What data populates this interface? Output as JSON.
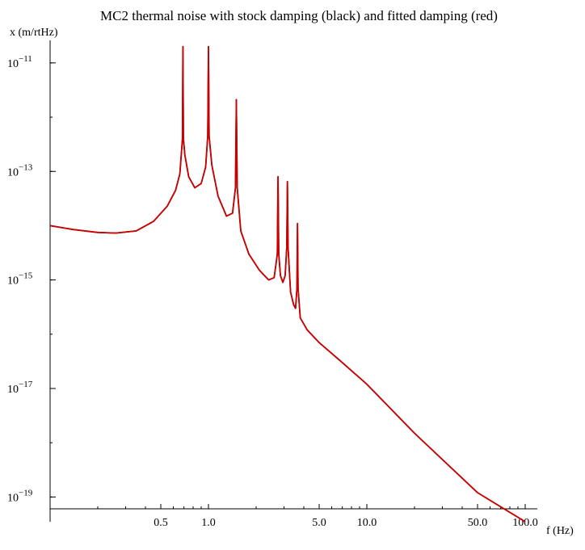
{
  "chart_data": {
    "type": "line",
    "title": "MC2 thermal noise with stock damping (black) and fitted damping (red)",
    "xlabel": "f (Hz)",
    "ylabel": "x (m/rtHz)",
    "x_scale": "log",
    "y_scale": "log",
    "xlim": [
      0.1,
      100
    ],
    "ylim": [
      3.5e-20,
      2.6e-11
    ],
    "grid": false,
    "x_ticks": [
      {
        "value": 0.5,
        "label": "0.5"
      },
      {
        "value": 1.0,
        "label": "1.0"
      },
      {
        "value": 5.0,
        "label": "5.0"
      },
      {
        "value": 10.0,
        "label": "10.0"
      },
      {
        "value": 50.0,
        "label": "50.0"
      },
      {
        "value": 100.0,
        "label": "100.0"
      }
    ],
    "y_ticks": [
      {
        "value": 1e-11,
        "base": "10",
        "exponent": "−11"
      },
      {
        "value": 1e-13,
        "base": "10",
        "exponent": "−13"
      },
      {
        "value": 1e-15,
        "base": "10",
        "exponent": "−15"
      },
      {
        "value": 1e-17,
        "base": "10",
        "exponent": "−17"
      },
      {
        "value": 1e-19,
        "base": "10",
        "exponent": "−19"
      }
    ],
    "series": [
      {
        "color": "#000000",
        "x": [
          0.1,
          0.14,
          0.2,
          0.26,
          0.35,
          0.45,
          0.55,
          0.62,
          0.66,
          0.685,
          0.69,
          0.695,
          0.71,
          0.75,
          0.82,
          0.9,
          0.96,
          0.99,
          1.0,
          1.01,
          1.05,
          1.15,
          1.3,
          1.42,
          1.48,
          1.5,
          1.52,
          1.6,
          1.8,
          2.1,
          2.4,
          2.6,
          2.72,
          2.75,
          2.78,
          2.85,
          2.95,
          3.05,
          3.12,
          3.15,
          3.18,
          3.3,
          3.45,
          3.55,
          3.62,
          3.65,
          3.68,
          3.8,
          4.2,
          5.0,
          7.0,
          10,
          20,
          50,
          100
        ],
        "y": [
          1e-14,
          8.5e-15,
          7.5e-15,
          7.3e-15,
          8e-15,
          1.2e-14,
          2.3e-14,
          4.5e-14,
          9e-14,
          4e-13,
          2e-11,
          4e-13,
          2e-13,
          8e-14,
          5e-14,
          6e-14,
          1.2e-13,
          4.5e-13,
          2e-11,
          4.5e-13,
          1.3e-13,
          3.5e-14,
          1.5e-14,
          1.7e-14,
          5e-14,
          2.1e-12,
          5e-14,
          8e-15,
          3e-15,
          1.5e-15,
          1e-15,
          1.1e-15,
          3e-15,
          8e-14,
          3e-15,
          1.2e-15,
          9e-16,
          1.2e-15,
          4e-15,
          6.5e-14,
          4e-15,
          6e-16,
          3.5e-16,
          3e-16,
          7e-16,
          1.1e-14,
          7e-16,
          2e-16,
          1.2e-16,
          7e-17,
          3e-17,
          1.2e-17,
          1.5e-18,
          1.2e-19,
          3.5e-20
        ]
      },
      {
        "color": "#cc0000",
        "x": [
          0.1,
          0.14,
          0.2,
          0.26,
          0.35,
          0.45,
          0.55,
          0.62,
          0.66,
          0.685,
          0.69,
          0.695,
          0.71,
          0.75,
          0.82,
          0.9,
          0.96,
          0.99,
          1.0,
          1.01,
          1.05,
          1.15,
          1.3,
          1.42,
          1.48,
          1.5,
          1.52,
          1.6,
          1.8,
          2.1,
          2.4,
          2.6,
          2.72,
          2.75,
          2.78,
          2.85,
          2.95,
          3.05,
          3.12,
          3.15,
          3.18,
          3.3,
          3.45,
          3.55,
          3.62,
          3.65,
          3.68,
          3.8,
          4.2,
          5.0,
          7.0,
          10,
          20,
          50,
          100
        ],
        "y": [
          1e-14,
          8.5e-15,
          7.5e-15,
          7.3e-15,
          8e-15,
          1.2e-14,
          2.3e-14,
          4.5e-14,
          9e-14,
          4e-13,
          2e-11,
          4e-13,
          2e-13,
          8e-14,
          5e-14,
          6e-14,
          1.2e-13,
          4.5e-13,
          2e-11,
          4.5e-13,
          1.3e-13,
          3.5e-14,
          1.5e-14,
          1.7e-14,
          5e-14,
          2.1e-12,
          5e-14,
          8e-15,
          3e-15,
          1.5e-15,
          1e-15,
          1.1e-15,
          3e-15,
          8e-14,
          3e-15,
          1.2e-15,
          9e-16,
          1.2e-15,
          4e-15,
          6.5e-14,
          4e-15,
          6e-16,
          3.5e-16,
          3e-16,
          7e-16,
          1.1e-14,
          7e-16,
          2e-16,
          1.2e-16,
          7e-17,
          3e-17,
          1.2e-17,
          1.5e-18,
          1.2e-19,
          3.5e-20
        ]
      }
    ]
  }
}
